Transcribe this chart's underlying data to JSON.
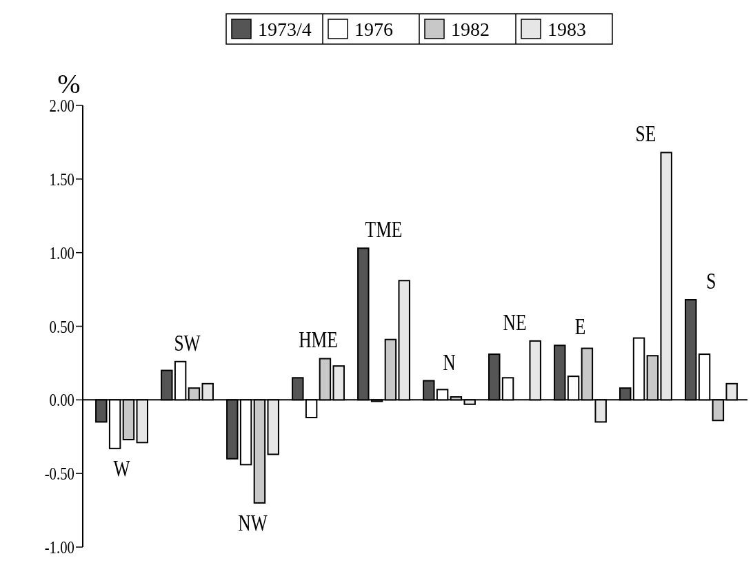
{
  "chart_data": {
    "type": "bar",
    "ylabel": "%",
    "categories": [
      "W",
      "SW",
      "NW",
      "HME",
      "TME",
      "N",
      "NE",
      "E",
      "SE",
      "S"
    ],
    "series": [
      {
        "name": "1973/4",
        "color": "#555555",
        "values": [
          -0.15,
          0.2,
          -0.4,
          0.15,
          1.03,
          0.13,
          0.31,
          0.37,
          0.08,
          0.68
        ]
      },
      {
        "name": "1976",
        "color": "#ffffff",
        "values": [
          -0.33,
          0.26,
          -0.44,
          -0.12,
          -0.01,
          0.07,
          0.15,
          0.16,
          0.42,
          0.31
        ]
      },
      {
        "name": "1982",
        "color": "#c8c8c8",
        "values": [
          -0.27,
          0.08,
          -0.7,
          0.28,
          0.41,
          0.02,
          null,
          0.35,
          0.3,
          -0.14
        ]
      },
      {
        "name": "1983",
        "color": "#e6e6e6",
        "values": [
          -0.29,
          0.11,
          -0.37,
          0.23,
          0.81,
          -0.03,
          0.4,
          -0.15,
          1.68,
          0.11
        ]
      }
    ],
    "ylim": [
      -1,
      2
    ],
    "yticks": [
      {
        "value": -1,
        "label": "-1.00"
      },
      {
        "value": -0.5,
        "label": "-0.50"
      },
      {
        "value": 0,
        "label": "0.00"
      },
      {
        "value": 0.5,
        "label": "0.50"
      },
      {
        "value": 1,
        "label": "1.00"
      },
      {
        "value": 1.5,
        "label": "1.50"
      },
      {
        "value": 2,
        "label": "2.00"
      }
    ],
    "legend": "top",
    "grid": false
  }
}
